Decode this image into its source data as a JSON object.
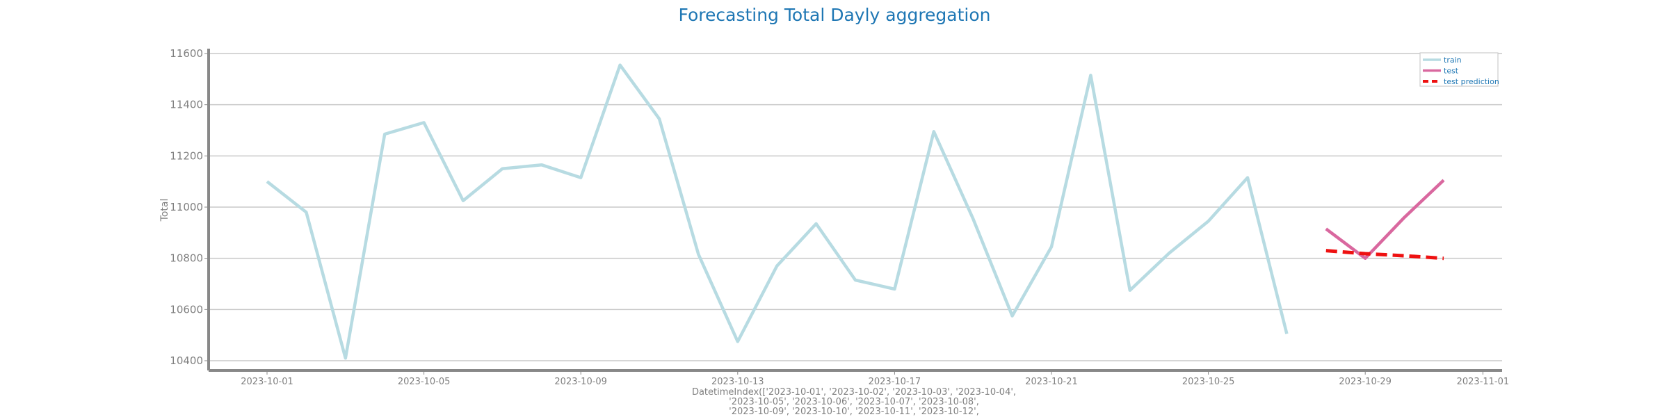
{
  "chart_data": {
    "type": "line",
    "title": "Forecasting Total Dayly aggregation",
    "ylabel": "Total",
    "xlabel_lines": [
      "DatetimeIndex(['2023-10-01', '2023-10-02', '2023-10-03', '2023-10-04',",
      "'2023-10-05', '2023-10-06', '2023-10-07', '2023-10-08',",
      "'2023-10-09', '2023-10-10', '2023-10-11', '2023-10-12',"
    ],
    "ylim": [
      10360,
      11600
    ],
    "yticks": [
      10400,
      10600,
      10800,
      11000,
      11200,
      11400,
      11600
    ],
    "xlim": [
      "2023-09-29",
      "2023-11-01"
    ],
    "xticks": [
      "2023-10-01",
      "2023-10-05",
      "2023-10-09",
      "2023-10-13",
      "2023-10-17",
      "2023-10-21",
      "2023-10-25",
      "2023-10-29",
      "2023-11-01"
    ],
    "grid": "horizontal",
    "legend_position": "top-right",
    "series": [
      {
        "name": "train",
        "color": "#b7dbe2",
        "style": "solid",
        "x": [
          "2023-10-01",
          "2023-10-02",
          "2023-10-03",
          "2023-10-04",
          "2023-10-05",
          "2023-10-06",
          "2023-10-07",
          "2023-10-08",
          "2023-10-09",
          "2023-10-10",
          "2023-10-11",
          "2023-10-12",
          "2023-10-13",
          "2023-10-14",
          "2023-10-15",
          "2023-10-16",
          "2023-10-17",
          "2023-10-18",
          "2023-10-19",
          "2023-10-20",
          "2023-10-21",
          "2023-10-22",
          "2023-10-23",
          "2023-10-24",
          "2023-10-25",
          "2023-10-26",
          "2023-10-27"
        ],
        "y": [
          11100,
          10980,
          10410,
          11285,
          11330,
          11025,
          11150,
          11165,
          11115,
          11555,
          11345,
          10815,
          10475,
          10770,
          10935,
          10715,
          10680,
          11295,
          10955,
          10575,
          10845,
          11515,
          10675,
          10820,
          10945,
          11115,
          10505
        ]
      },
      {
        "name": "test",
        "color": "#d9689f",
        "style": "solid",
        "x": [
          "2023-10-28",
          "2023-10-29",
          "2023-10-30",
          "2023-10-31"
        ],
        "y": [
          10915,
          10800,
          10960,
          11105
        ]
      },
      {
        "name": "test prediction",
        "color": "#ee1111",
        "style": "dashed",
        "x": [
          "2023-10-28",
          "2023-10-29",
          "2023-10-30",
          "2023-10-31"
        ],
        "y": [
          10830,
          10818,
          10810,
          10800
        ]
      }
    ]
  }
}
